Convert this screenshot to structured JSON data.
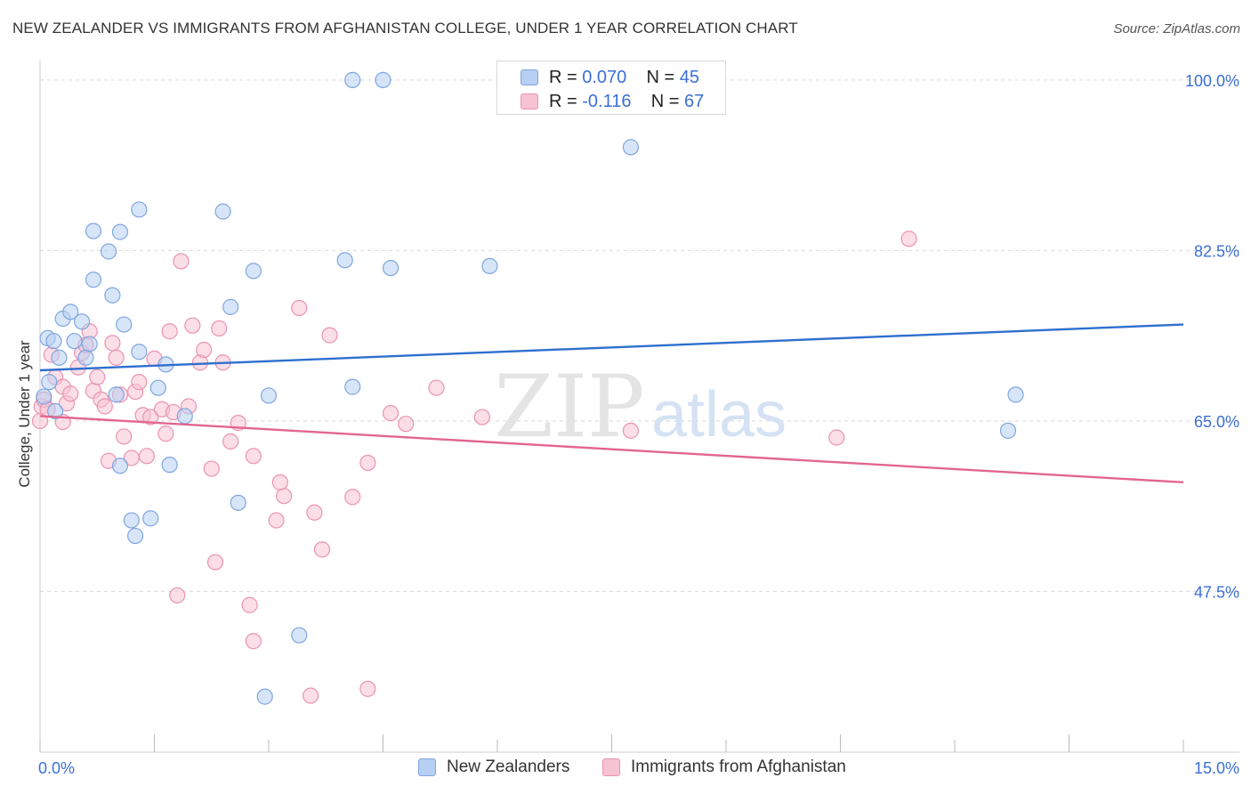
{
  "header": {
    "title": "NEW ZEALANDER VS IMMIGRANTS FROM AFGHANISTAN COLLEGE, UNDER 1 YEAR CORRELATION CHART",
    "source": "Source: ZipAtlas.com"
  },
  "watermark": {
    "zip": "ZIP",
    "atlas": "atlas"
  },
  "legend": {
    "rows": [
      {
        "r_label": "R =",
        "r_value": "0.070",
        "n_label": "N =",
        "n_value": "45"
      },
      {
        "r_label": "R =",
        "r_value": "-0.116",
        "n_label": "N =",
        "n_value": "67"
      }
    ]
  },
  "bottom_legend": {
    "series1": "New Zealanders",
    "series2": "Immigrants from Afghanistan"
  },
  "colors": {
    "series1_fill": "#b7cff2",
    "series1_stroke": "#7fa6e0",
    "series1_line": "#2e6fcf",
    "series2_fill": "#f7c2d2",
    "series2_stroke": "#ec93b1",
    "series2_line": "#e2668f",
    "tick_label": "#3b6fd6",
    "grid": "#d9d9d9"
  },
  "chart_data": {
    "type": "scatter",
    "title": "NEW ZEALANDER VS IMMIGRANTS FROM AFGHANISTAN COLLEGE, UNDER 1 YEAR CORRELATION CHART",
    "xlabel": "",
    "ylabel": "College, Under 1 year",
    "xlim": [
      0,
      15
    ],
    "ylim": [
      31,
      102
    ],
    "x_tick_labels": [
      "0.0%",
      "15.0%"
    ],
    "y_ticks": [
      47.5,
      65.0,
      82.5,
      100.0
    ],
    "y_tick_labels": [
      "47.5%",
      "65.0%",
      "82.5%",
      "100.0%"
    ],
    "series": [
      {
        "name": "New Zealanders",
        "R": 0.07,
        "N": 45,
        "trend": {
          "x": [
            0,
            15
          ],
          "y": [
            70.2,
            74.9
          ]
        },
        "points": [
          [
            0.05,
            67.5
          ],
          [
            0.12,
            69.0
          ],
          [
            0.2,
            66.0
          ],
          [
            0.1,
            73.5
          ],
          [
            0.18,
            73.2
          ],
          [
            0.3,
            75.5
          ],
          [
            0.4,
            76.2
          ],
          [
            0.45,
            73.2
          ],
          [
            0.55,
            75.2
          ],
          [
            0.6,
            71.5
          ],
          [
            0.25,
            71.5
          ],
          [
            0.65,
            72.9
          ],
          [
            0.7,
            79.5
          ],
          [
            0.95,
            77.9
          ],
          [
            0.7,
            84.5
          ],
          [
            1.05,
            84.4
          ],
          [
            1.1,
            74.9
          ],
          [
            0.9,
            82.4
          ],
          [
            1.3,
            86.7
          ],
          [
            1.3,
            72.1
          ],
          [
            1.0,
            67.7
          ],
          [
            1.05,
            60.4
          ],
          [
            1.2,
            54.8
          ],
          [
            1.25,
            53.2
          ],
          [
            1.45,
            55.0
          ],
          [
            1.55,
            68.4
          ],
          [
            1.65,
            70.8
          ],
          [
            1.7,
            60.5
          ],
          [
            1.9,
            65.5
          ],
          [
            2.4,
            86.5
          ],
          [
            2.5,
            76.7
          ],
          [
            2.8,
            80.4
          ],
          [
            2.6,
            56.6
          ],
          [
            3.0,
            67.6
          ],
          [
            4.5,
            100.0
          ],
          [
            4.1,
            100.0
          ],
          [
            4.0,
            81.5
          ],
          [
            4.1,
            68.5
          ],
          [
            3.4,
            43.0
          ],
          [
            2.95,
            36.7
          ],
          [
            4.6,
            80.7
          ],
          [
            5.9,
            80.9
          ],
          [
            7.75,
            93.1
          ],
          [
            12.8,
            67.7
          ],
          [
            12.7,
            64.0
          ]
        ]
      },
      {
        "name": "Immigrants from Afghanistan",
        "R": -0.116,
        "N": 67,
        "trend": {
          "x": [
            0,
            15
          ],
          "y": [
            65.5,
            58.7
          ]
        },
        "points": [
          [
            0.0,
            65.0
          ],
          [
            0.02,
            66.5
          ],
          [
            0.05,
            67.2
          ],
          [
            0.15,
            71.8
          ],
          [
            0.2,
            69.5
          ],
          [
            0.3,
            68.5
          ],
          [
            0.35,
            66.8
          ],
          [
            0.4,
            67.8
          ],
          [
            0.5,
            70.5
          ],
          [
            0.55,
            72.0
          ],
          [
            0.65,
            74.2
          ],
          [
            0.7,
            68.1
          ],
          [
            0.75,
            69.5
          ],
          [
            0.8,
            67.2
          ],
          [
            0.85,
            66.5
          ],
          [
            0.9,
            60.9
          ],
          [
            1.0,
            71.5
          ],
          [
            1.05,
            67.7
          ],
          [
            1.1,
            63.4
          ],
          [
            1.2,
            61.2
          ],
          [
            1.25,
            68.0
          ],
          [
            1.3,
            69.0
          ],
          [
            1.35,
            65.6
          ],
          [
            1.4,
            61.4
          ],
          [
            1.45,
            65.4
          ],
          [
            1.5,
            71.4
          ],
          [
            1.6,
            66.2
          ],
          [
            1.65,
            63.7
          ],
          [
            1.7,
            74.2
          ],
          [
            1.75,
            65.9
          ],
          [
            1.8,
            47.1
          ],
          [
            1.85,
            81.4
          ],
          [
            2.0,
            74.8
          ],
          [
            2.1,
            71.0
          ],
          [
            2.25,
            60.1
          ],
          [
            2.3,
            50.5
          ],
          [
            2.35,
            74.5
          ],
          [
            2.4,
            71.0
          ],
          [
            2.5,
            62.9
          ],
          [
            2.6,
            64.8
          ],
          [
            2.8,
            61.4
          ],
          [
            2.75,
            46.1
          ],
          [
            2.8,
            42.4
          ],
          [
            3.1,
            54.8
          ],
          [
            3.2,
            57.3
          ],
          [
            3.15,
            58.7
          ],
          [
            3.4,
            76.6
          ],
          [
            3.6,
            55.6
          ],
          [
            3.8,
            73.8
          ],
          [
            3.7,
            51.8
          ],
          [
            4.1,
            57.2
          ],
          [
            4.3,
            60.7
          ],
          [
            4.6,
            65.8
          ],
          [
            4.8,
            64.7
          ],
          [
            5.2,
            68.4
          ],
          [
            5.8,
            65.4
          ],
          [
            7.75,
            64.0
          ],
          [
            10.45,
            63.3
          ],
          [
            11.4,
            83.7
          ],
          [
            4.3,
            37.5
          ],
          [
            3.55,
            36.8
          ],
          [
            0.3,
            64.9
          ],
          [
            0.6,
            72.8
          ],
          [
            0.1,
            66.2
          ],
          [
            1.95,
            66.5
          ],
          [
            2.15,
            72.3
          ],
          [
            0.95,
            73.0
          ]
        ]
      }
    ]
  }
}
